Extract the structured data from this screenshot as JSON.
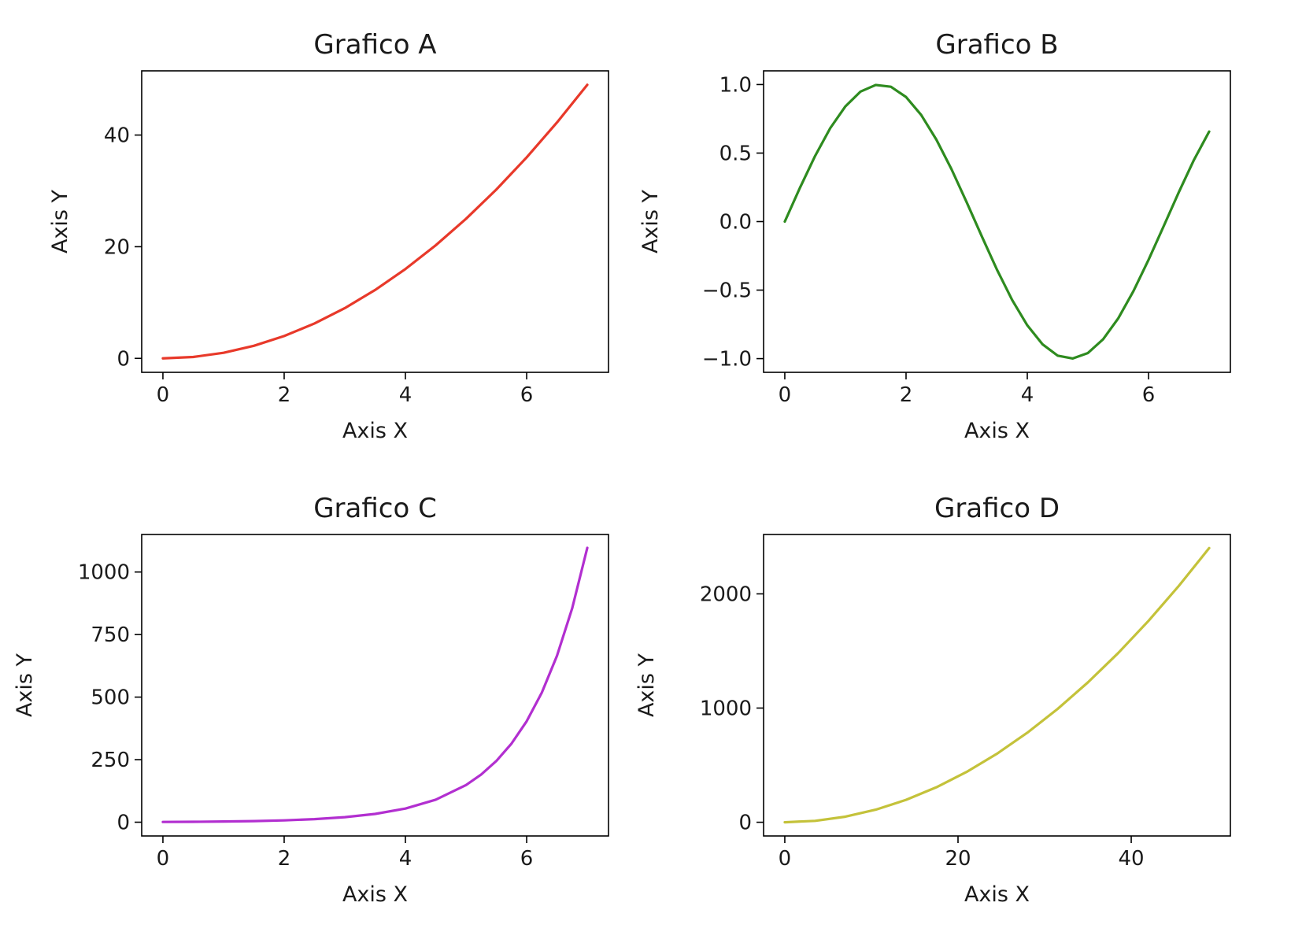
{
  "chart_data": [
    {
      "type": "line",
      "title": "Grafico A",
      "xlabel": "Axis X",
      "ylabel": "Axis Y",
      "xlim": [
        -0.35,
        7.35
      ],
      "ylim": [
        -2.5,
        51.5
      ],
      "xticks": [
        0,
        2,
        4,
        6
      ],
      "xtick_labels": [
        "0",
        "2",
        "4",
        "6"
      ],
      "yticks": [
        0,
        20,
        40
      ],
      "ytick_labels": [
        "0",
        "20",
        "40"
      ],
      "grid": false,
      "color": "#e8392a",
      "series": [
        {
          "x": [
            0,
            0.5,
            1,
            1.5,
            2,
            2.5,
            3,
            3.5,
            4,
            4.5,
            5,
            5.5,
            6,
            6.5,
            7
          ],
          "y": [
            0,
            0.25,
            1,
            2.25,
            4,
            6.25,
            9,
            12.25,
            16,
            20.25,
            25,
            30.25,
            36,
            42.25,
            49
          ]
        }
      ]
    },
    {
      "type": "line",
      "title": "Grafico B",
      "xlabel": "Axis X",
      "ylabel": "Axis Y",
      "xlim": [
        -0.35,
        7.35
      ],
      "ylim": [
        -1.1,
        1.1
      ],
      "xticks": [
        0,
        2,
        4,
        6
      ],
      "xtick_labels": [
        "0",
        "2",
        "4",
        "6"
      ],
      "yticks": [
        -1.0,
        -0.5,
        0.0,
        0.5,
        1.0
      ],
      "ytick_labels": [
        "−1.0",
        "−0.5",
        "0.0",
        "0.5",
        "1.0"
      ],
      "grid": false,
      "color": "#2e8b1f",
      "series": [
        {
          "x": [
            0,
            0.25,
            0.5,
            0.75,
            1,
            1.25,
            1.5,
            1.75,
            2,
            2.25,
            2.5,
            2.75,
            3,
            3.25,
            3.5,
            3.75,
            4,
            4.25,
            4.5,
            4.75,
            5,
            5.25,
            5.5,
            5.75,
            6,
            6.25,
            6.5,
            6.75,
            7
          ],
          "y": [
            0,
            0.247,
            0.479,
            0.682,
            0.841,
            0.949,
            0.997,
            0.984,
            0.909,
            0.778,
            0.598,
            0.382,
            0.141,
            -0.108,
            -0.351,
            -0.572,
            -0.757,
            -0.895,
            -0.978,
            -0.999,
            -0.959,
            -0.859,
            -0.706,
            -0.508,
            -0.279,
            -0.033,
            0.215,
            0.451,
            0.657
          ]
        }
      ]
    },
    {
      "type": "line",
      "title": "Grafico C",
      "xlabel": "Axis X",
      "ylabel": "Axis Y",
      "xlim": [
        -0.35,
        7.35
      ],
      "ylim": [
        -55,
        1150
      ],
      "xticks": [
        0,
        2,
        4,
        6
      ],
      "xtick_labels": [
        "0",
        "2",
        "4",
        "6"
      ],
      "yticks": [
        0,
        250,
        500,
        750,
        1000
      ],
      "ytick_labels": [
        "0",
        "250",
        "500",
        "750",
        "1000"
      ],
      "grid": false,
      "color": "#b22fd0",
      "series": [
        {
          "x": [
            0,
            0.5,
            1,
            1.5,
            2,
            2.5,
            3,
            3.5,
            4,
            4.5,
            5,
            5.25,
            5.5,
            5.75,
            6,
            6.25,
            6.5,
            6.75,
            7
          ],
          "y": [
            1,
            1.6,
            2.7,
            4.5,
            7.4,
            12.2,
            20.1,
            33.1,
            54.6,
            90,
            148.4,
            190.6,
            244.7,
            314.2,
            403.4,
            518,
            665.1,
            854.1,
            1096.6
          ]
        }
      ]
    },
    {
      "type": "line",
      "title": "Grafico D",
      "xlabel": "Axis X",
      "ylabel": "Axis Y",
      "xlim": [
        -2.45,
        51.45
      ],
      "ylim": [
        -120,
        2520
      ],
      "xticks": [
        0,
        20,
        40
      ],
      "xtick_labels": [
        "0",
        "20",
        "40"
      ],
      "yticks": [
        0,
        1000,
        2000
      ],
      "ytick_labels": [
        "0",
        "1000",
        "2000"
      ],
      "grid": false,
      "color": "#c4c23a",
      "series": [
        {
          "x": [
            0,
            3.5,
            7,
            10.5,
            14,
            17.5,
            21,
            24.5,
            28,
            31.5,
            35,
            38.5,
            42,
            45.5,
            49
          ],
          "y": [
            0,
            12.25,
            49,
            110.25,
            196,
            306.25,
            441,
            600.25,
            784,
            992.25,
            1225,
            1482.25,
            1764,
            2070.25,
            2401
          ]
        }
      ]
    }
  ]
}
